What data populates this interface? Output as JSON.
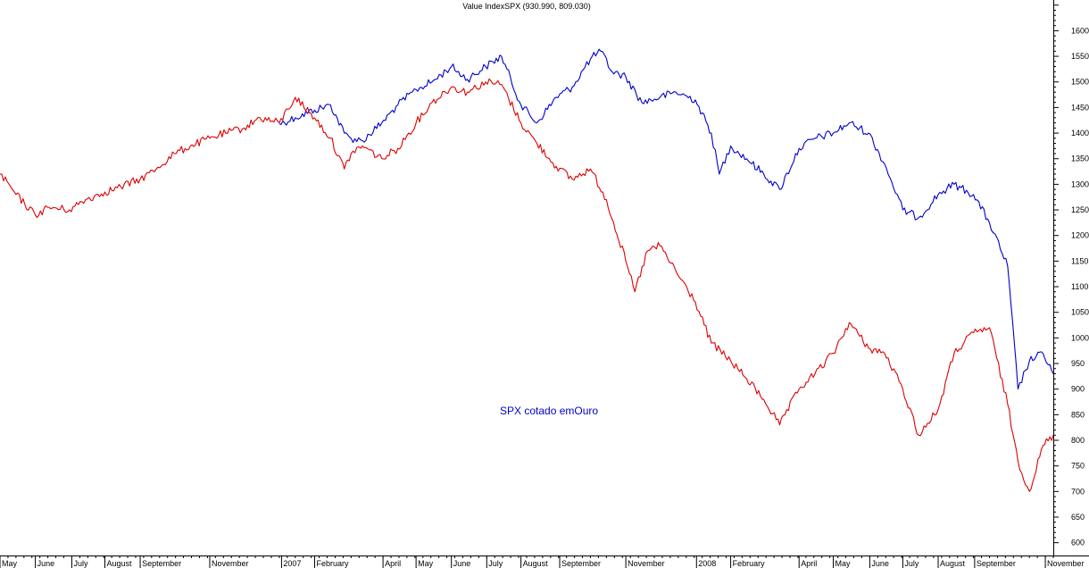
{
  "chart_data": {
    "type": "line",
    "title": "Value IndexSPX (930.990, 809.030)",
    "annotation": "SPX cotado emOuro",
    "xlabel": "",
    "ylabel": "",
    "ylim": [
      575,
      1660
    ],
    "y_ticks": [
      600,
      650,
      700,
      750,
      800,
      850,
      900,
      950,
      1000,
      1050,
      1100,
      1150,
      1200,
      1250,
      1300,
      1350,
      1400,
      1450,
      1500,
      1550,
      1600
    ],
    "x_range": [
      "2006-05-01",
      "2008-11-10"
    ],
    "x_ticks": [
      {
        "label": "May",
        "date": "2006-05-01"
      },
      {
        "label": "June",
        "date": "2006-06-01"
      },
      {
        "label": "July",
        "date": "2006-07-03"
      },
      {
        "label": "August",
        "date": "2006-08-01"
      },
      {
        "label": "September",
        "date": "2006-09-01"
      },
      {
        "label": "November",
        "date": "2006-11-01"
      },
      {
        "label": "2007",
        "date": "2007-01-03"
      },
      {
        "label": "February",
        "date": "2007-02-01"
      },
      {
        "label": "April",
        "date": "2007-04-02"
      },
      {
        "label": "May",
        "date": "2007-05-01"
      },
      {
        "label": "June",
        "date": "2007-06-01"
      },
      {
        "label": "July",
        "date": "2007-07-02"
      },
      {
        "label": "August",
        "date": "2007-08-01"
      },
      {
        "label": "September",
        "date": "2007-09-04"
      },
      {
        "label": "November",
        "date": "2007-11-01"
      },
      {
        "label": "2008",
        "date": "2008-01-02"
      },
      {
        "label": "February",
        "date": "2008-02-01"
      },
      {
        "label": "April",
        "date": "2008-04-01"
      },
      {
        "label": "May",
        "date": "2008-05-01"
      },
      {
        "label": "June",
        "date": "2008-06-02"
      },
      {
        "label": "July",
        "date": "2008-07-01"
      },
      {
        "label": "August",
        "date": "2008-08-01"
      },
      {
        "label": "September",
        "date": "2008-09-02"
      },
      {
        "label": "November",
        "date": "2008-11-03"
      }
    ],
    "grid": false,
    "legend": "none",
    "series": [
      {
        "color": "#0000cc",
        "x": [
          "2007-01-01",
          "2007-01-15",
          "2007-02-01",
          "2007-02-15",
          "2007-02-27",
          "2007-03-05",
          "2007-03-15",
          "2007-04-01",
          "2007-04-15",
          "2007-05-01",
          "2007-05-15",
          "2007-06-01",
          "2007-06-15",
          "2007-07-01",
          "2007-07-15",
          "2007-08-01",
          "2007-08-15",
          "2007-09-01",
          "2007-09-15",
          "2007-10-01",
          "2007-10-10",
          "2007-10-20",
          "2007-11-01",
          "2007-11-15",
          "2007-12-01",
          "2007-12-15",
          "2008-01-01",
          "2008-01-15",
          "2008-01-22",
          "2008-02-01",
          "2008-02-15",
          "2008-03-01",
          "2008-03-15",
          "2008-04-01",
          "2008-04-15",
          "2008-05-01",
          "2008-05-15",
          "2008-06-01",
          "2008-06-15",
          "2008-07-01",
          "2008-07-15",
          "2008-08-01",
          "2008-08-15",
          "2008-09-01",
          "2008-09-15",
          "2008-10-01",
          "2008-10-10",
          "2008-10-20",
          "2008-11-01",
          "2008-11-10"
        ],
        "values": [
          1418,
          1430,
          1445,
          1455,
          1400,
          1390,
          1385,
          1420,
          1455,
          1485,
          1500,
          1530,
          1505,
          1530,
          1550,
          1455,
          1420,
          1470,
          1490,
          1545,
          1560,
          1520,
          1510,
          1460,
          1470,
          1480,
          1465,
          1400,
          1320,
          1375,
          1350,
          1320,
          1290,
          1370,
          1390,
          1400,
          1420,
          1400,
          1340,
          1250,
          1235,
          1280,
          1300,
          1280,
          1225,
          1140,
          900,
          955,
          970,
          930
        ]
      },
      {
        "color": "#dd0000",
        "x": [
          "2006-05-01",
          "2006-05-15",
          "2006-06-01",
          "2006-06-13",
          "2006-07-01",
          "2006-07-15",
          "2006-08-01",
          "2006-08-15",
          "2006-09-01",
          "2006-09-15",
          "2006-10-01",
          "2006-10-15",
          "2006-11-01",
          "2006-11-15",
          "2006-12-01",
          "2006-12-15",
          "2007-01-01",
          "2007-01-15",
          "2007-02-01",
          "2007-02-15",
          "2007-02-27",
          "2007-03-05",
          "2007-03-15",
          "2007-04-01",
          "2007-04-15",
          "2007-05-01",
          "2007-05-15",
          "2007-06-01",
          "2007-06-15",
          "2007-07-01",
          "2007-07-15",
          "2007-08-01",
          "2007-08-15",
          "2007-09-01",
          "2007-09-15",
          "2007-10-01",
          "2007-10-15",
          "2007-11-01",
          "2007-11-09",
          "2007-11-20",
          "2007-12-01",
          "2007-12-15",
          "2008-01-01",
          "2008-01-15",
          "2008-02-01",
          "2008-02-15",
          "2008-03-01",
          "2008-03-15",
          "2008-04-01",
          "2008-04-15",
          "2008-05-01",
          "2008-05-15",
          "2008-06-01",
          "2008-06-15",
          "2008-07-01",
          "2008-07-15",
          "2008-08-01",
          "2008-08-15",
          "2008-09-01",
          "2008-09-15",
          "2008-10-01",
          "2008-10-10",
          "2008-10-20",
          "2008-11-01",
          "2008-11-10"
        ],
        "values": [
          1320,
          1280,
          1240,
          1255,
          1250,
          1270,
          1285,
          1295,
          1310,
          1330,
          1360,
          1375,
          1390,
          1400,
          1410,
          1430,
          1420,
          1470,
          1430,
          1390,
          1330,
          1360,
          1375,
          1350,
          1370,
          1420,
          1460,
          1490,
          1480,
          1500,
          1495,
          1420,
          1380,
          1335,
          1310,
          1330,
          1270,
          1150,
          1090,
          1170,
          1180,
          1130,
          1070,
          990,
          955,
          920,
          880,
          830,
          900,
          930,
          970,
          1030,
          980,
          970,
          900,
          810,
          860,
          970,
          1010,
          1020,
          870,
          760,
          700,
          790,
          810
        ]
      }
    ]
  }
}
